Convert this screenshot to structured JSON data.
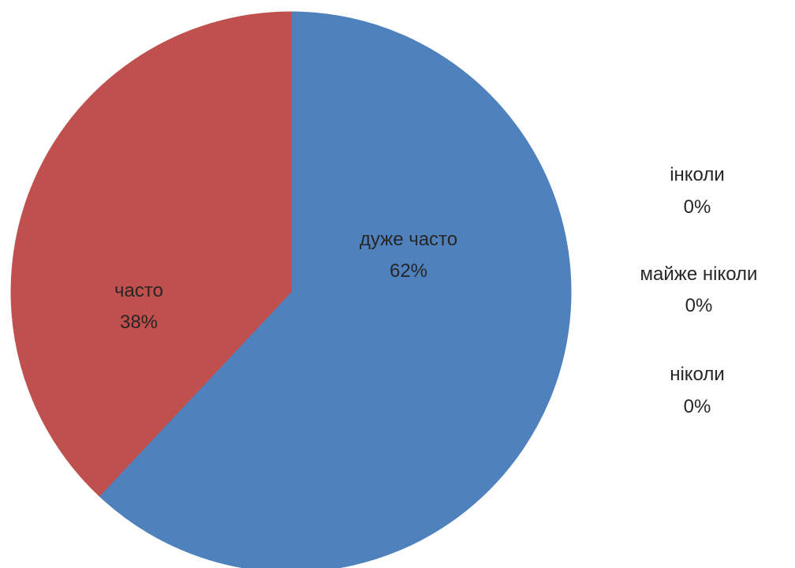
{
  "chart_data": {
    "type": "pie",
    "slices": [
      {
        "label": "дуже часто",
        "value": 62,
        "value_label": "62%",
        "color": "#4F81BD"
      },
      {
        "label": "часто",
        "value": 38,
        "value_label": "38%",
        "color": "#C0504D"
      },
      {
        "label": "інколи",
        "value": 0,
        "value_label": "0%",
        "color": "#9BBB59"
      },
      {
        "label": "майже ніколи",
        "value": 0,
        "value_label": "0%",
        "color": "#8064A2"
      },
      {
        "label": "ніколи",
        "value": 0,
        "value_label": "0%",
        "color": "#4BACC6"
      }
    ],
    "start_angle": "12 o'clock",
    "direction": "clockwise",
    "label_text_color": "#262626",
    "background": "#ffffff"
  }
}
